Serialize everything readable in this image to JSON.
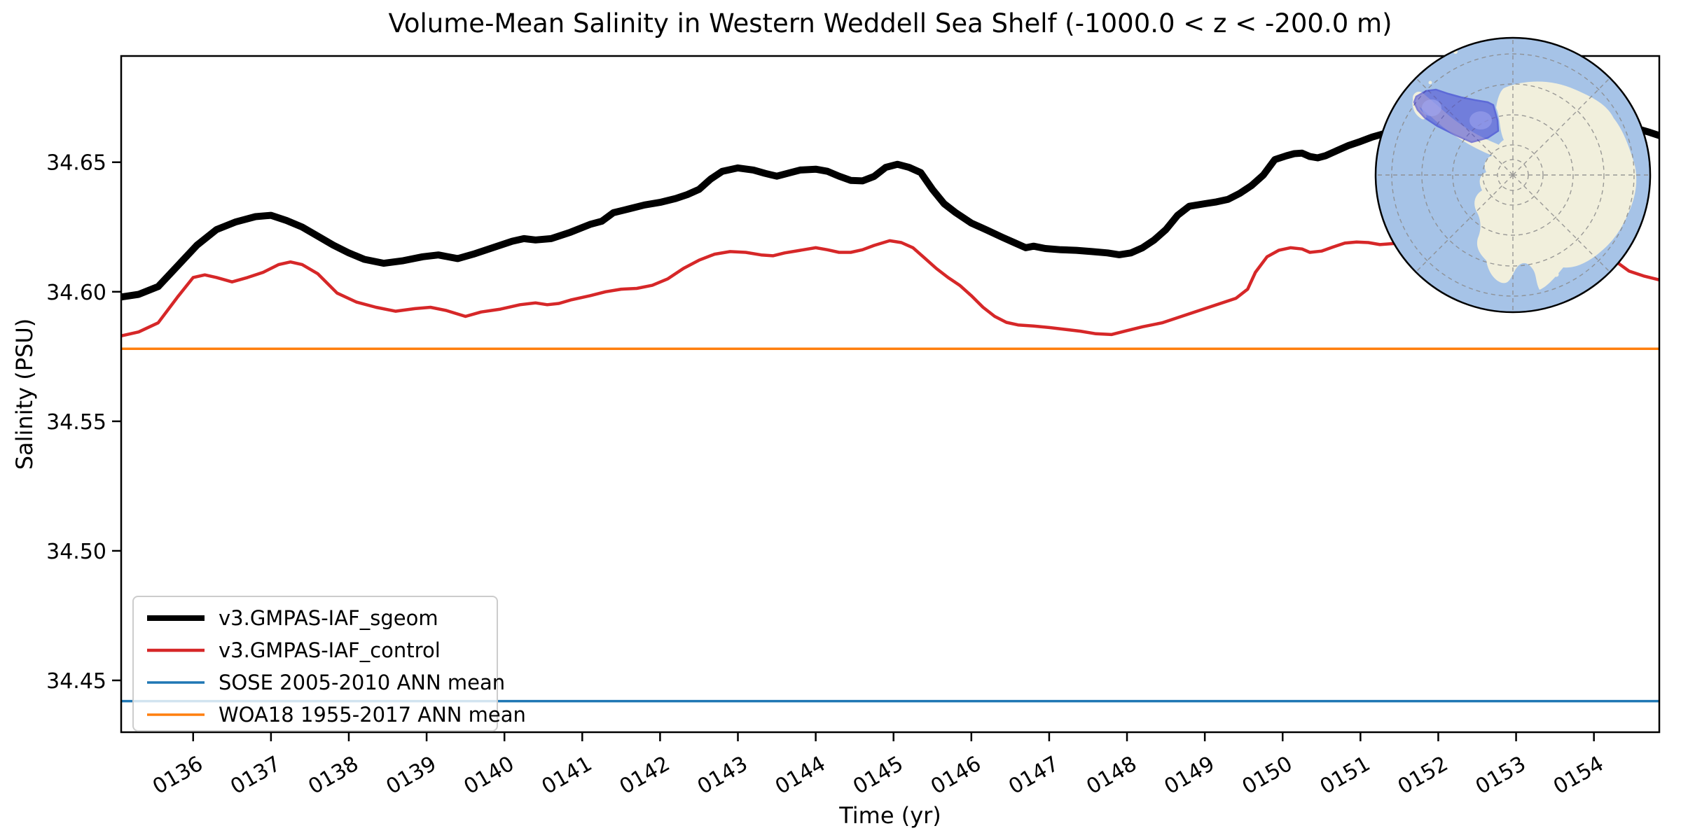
{
  "chart_data": {
    "type": "line",
    "title": "Volume-Mean Salinity in Western Weddell Sea Shelf (-1000.0 < z < -200.0 m)",
    "xlabel": "Time (yr)",
    "ylabel": "Salinity (PSU)",
    "xlim": [
      135.075,
      154.84
    ],
    "ylim": [
      34.43,
      34.691
    ],
    "grid": false,
    "x_ticks": [
      {
        "value": 136,
        "label": "0136"
      },
      {
        "value": 137,
        "label": "0137"
      },
      {
        "value": 138,
        "label": "0138"
      },
      {
        "value": 139,
        "label": "0139"
      },
      {
        "value": 140,
        "label": "0140"
      },
      {
        "value": 141,
        "label": "0141"
      },
      {
        "value": 142,
        "label": "0142"
      },
      {
        "value": 143,
        "label": "0143"
      },
      {
        "value": 144,
        "label": "0144"
      },
      {
        "value": 145,
        "label": "0145"
      },
      {
        "value": 146,
        "label": "0146"
      },
      {
        "value": 147,
        "label": "0147"
      },
      {
        "value": 148,
        "label": "0148"
      },
      {
        "value": 149,
        "label": "0149"
      },
      {
        "value": 150,
        "label": "0150"
      },
      {
        "value": 151,
        "label": "0151"
      },
      {
        "value": 152,
        "label": "0152"
      },
      {
        "value": 153,
        "label": "0153"
      },
      {
        "value": 154,
        "label": "0154"
      }
    ],
    "y_ticks": [
      {
        "value": 34.45,
        "label": "34.45"
      },
      {
        "value": 34.5,
        "label": "34.50"
      },
      {
        "value": 34.55,
        "label": "34.55"
      },
      {
        "value": 34.6,
        "label": "34.60"
      },
      {
        "value": 34.65,
        "label": "34.65"
      }
    ],
    "series": [
      {
        "name": "v3.GMPAS-IAF_sgeom",
        "color": "#000000",
        "line_width": 10,
        "points": [
          [
            135.08,
            34.598
          ],
          [
            135.3,
            34.599
          ],
          [
            135.55,
            34.602
          ],
          [
            135.8,
            34.61
          ],
          [
            136.05,
            34.618
          ],
          [
            136.3,
            34.624
          ],
          [
            136.55,
            34.627
          ],
          [
            136.8,
            34.629
          ],
          [
            137.0,
            34.6295
          ],
          [
            137.2,
            34.6275
          ],
          [
            137.4,
            34.625
          ],
          [
            137.6,
            34.6215
          ],
          [
            137.8,
            34.618
          ],
          [
            138.0,
            34.615
          ],
          [
            138.2,
            34.6125
          ],
          [
            138.45,
            34.611
          ],
          [
            138.7,
            34.612
          ],
          [
            138.95,
            34.6135
          ],
          [
            139.15,
            34.6142
          ],
          [
            139.4,
            34.6128
          ],
          [
            139.6,
            34.6145
          ],
          [
            139.85,
            34.617
          ],
          [
            140.1,
            34.6195
          ],
          [
            140.25,
            34.6205
          ],
          [
            140.4,
            34.62
          ],
          [
            140.6,
            34.6205
          ],
          [
            140.85,
            34.623
          ],
          [
            141.1,
            34.626
          ],
          [
            141.25,
            34.6272
          ],
          [
            141.4,
            34.6305
          ],
          [
            141.6,
            34.632
          ],
          [
            141.8,
            34.6335
          ],
          [
            142.0,
            34.6345
          ],
          [
            142.2,
            34.636
          ],
          [
            142.35,
            34.6375
          ],
          [
            142.5,
            34.6395
          ],
          [
            142.65,
            34.6435
          ],
          [
            142.8,
            34.6465
          ],
          [
            143.0,
            34.6478
          ],
          [
            143.2,
            34.647
          ],
          [
            143.35,
            34.6457
          ],
          [
            143.5,
            34.6446
          ],
          [
            143.65,
            34.6458
          ],
          [
            143.8,
            34.647
          ],
          [
            144.0,
            34.6473
          ],
          [
            144.15,
            34.6465
          ],
          [
            144.3,
            34.6446
          ],
          [
            144.45,
            34.643
          ],
          [
            144.6,
            34.6428
          ],
          [
            144.75,
            34.6445
          ],
          [
            144.9,
            34.648
          ],
          [
            145.05,
            34.6492
          ],
          [
            145.2,
            34.648
          ],
          [
            145.35,
            34.646
          ],
          [
            145.5,
            34.6395
          ],
          [
            145.65,
            34.634
          ],
          [
            145.8,
            34.6305
          ],
          [
            146.0,
            34.6265
          ],
          [
            146.2,
            34.6238
          ],
          [
            146.4,
            34.621
          ],
          [
            146.55,
            34.619
          ],
          [
            146.7,
            34.617
          ],
          [
            146.8,
            34.6176
          ],
          [
            146.95,
            34.6167
          ],
          [
            147.15,
            34.6162
          ],
          [
            147.35,
            34.616
          ],
          [
            147.55,
            34.6155
          ],
          [
            147.75,
            34.615
          ],
          [
            147.9,
            34.6143
          ],
          [
            148.05,
            34.615
          ],
          [
            148.2,
            34.617
          ],
          [
            148.35,
            34.62
          ],
          [
            148.5,
            34.624
          ],
          [
            148.65,
            34.6295
          ],
          [
            148.8,
            34.633
          ],
          [
            149.0,
            34.634
          ],
          [
            149.15,
            34.6347
          ],
          [
            149.3,
            34.6357
          ],
          [
            149.45,
            34.638
          ],
          [
            149.6,
            34.641
          ],
          [
            149.75,
            34.645
          ],
          [
            149.9,
            34.651
          ],
          [
            150.05,
            34.6525
          ],
          [
            150.15,
            34.6533
          ],
          [
            150.25,
            34.6535
          ],
          [
            150.35,
            34.6522
          ],
          [
            150.45,
            34.6517
          ],
          [
            150.55,
            34.6525
          ],
          [
            150.7,
            34.6545
          ],
          [
            150.85,
            34.6565
          ],
          [
            151.0,
            34.658
          ],
          [
            151.15,
            34.6597
          ],
          [
            151.3,
            34.661
          ],
          [
            151.6,
            34.662
          ],
          [
            152.0,
            34.6618
          ],
          [
            152.5,
            34.6628
          ],
          [
            153.0,
            34.6622
          ],
          [
            153.5,
            34.663
          ],
          [
            154.0,
            34.6635
          ],
          [
            154.3,
            34.663
          ],
          [
            154.62,
            34.6624
          ],
          [
            154.72,
            34.6615
          ],
          [
            154.84,
            34.6603
          ]
        ]
      },
      {
        "name": "v3.GMPAS-IAF_control",
        "color": "#d62728",
        "line_width": 4.5,
        "points": [
          [
            135.08,
            34.583
          ],
          [
            135.3,
            34.5845
          ],
          [
            135.55,
            34.588
          ],
          [
            135.8,
            34.598
          ],
          [
            136.0,
            34.6055
          ],
          [
            136.15,
            34.6065
          ],
          [
            136.3,
            34.6055
          ],
          [
            136.5,
            34.6038
          ],
          [
            136.7,
            34.6055
          ],
          [
            136.9,
            34.6075
          ],
          [
            137.1,
            34.6105
          ],
          [
            137.25,
            34.6115
          ],
          [
            137.4,
            34.6105
          ],
          [
            137.6,
            34.607
          ],
          [
            137.85,
            34.5995
          ],
          [
            138.1,
            34.596
          ],
          [
            138.35,
            34.594
          ],
          [
            138.6,
            34.5925
          ],
          [
            138.85,
            34.5935
          ],
          [
            139.05,
            34.594
          ],
          [
            139.25,
            34.5928
          ],
          [
            139.5,
            34.5905
          ],
          [
            139.7,
            34.5922
          ],
          [
            139.95,
            34.5933
          ],
          [
            140.2,
            34.595
          ],
          [
            140.4,
            34.5957
          ],
          [
            140.55,
            34.595
          ],
          [
            140.7,
            34.5955
          ],
          [
            140.85,
            34.5968
          ],
          [
            141.1,
            34.5985
          ],
          [
            141.3,
            34.6
          ],
          [
            141.5,
            34.601
          ],
          [
            141.7,
            34.6013
          ],
          [
            141.9,
            34.6025
          ],
          [
            142.1,
            34.605
          ],
          [
            142.3,
            34.609
          ],
          [
            142.5,
            34.6122
          ],
          [
            142.7,
            34.6145
          ],
          [
            142.9,
            34.6155
          ],
          [
            143.1,
            34.6152
          ],
          [
            143.3,
            34.6142
          ],
          [
            143.45,
            34.6139
          ],
          [
            143.6,
            34.615
          ],
          [
            143.8,
            34.616
          ],
          [
            144.0,
            34.617
          ],
          [
            144.15,
            34.6162
          ],
          [
            144.3,
            34.6152
          ],
          [
            144.45,
            34.6152
          ],
          [
            144.6,
            34.6162
          ],
          [
            144.75,
            34.6179
          ],
          [
            144.95,
            34.6197
          ],
          [
            145.1,
            34.619
          ],
          [
            145.25,
            34.617
          ],
          [
            145.4,
            34.613
          ],
          [
            145.55,
            34.609
          ],
          [
            145.7,
            34.6055
          ],
          [
            145.85,
            34.6025
          ],
          [
            146.0,
            34.5985
          ],
          [
            146.15,
            34.594
          ],
          [
            146.3,
            34.5905
          ],
          [
            146.45,
            34.5882
          ],
          [
            146.6,
            34.5872
          ],
          [
            146.8,
            34.5868
          ],
          [
            147.0,
            34.5862
          ],
          [
            147.2,
            34.5855
          ],
          [
            147.4,
            34.5848
          ],
          [
            147.6,
            34.5838
          ],
          [
            147.8,
            34.5835
          ],
          [
            148.0,
            34.585
          ],
          [
            148.2,
            34.5865
          ],
          [
            148.45,
            34.588
          ],
          [
            148.7,
            34.5905
          ],
          [
            148.95,
            34.593
          ],
          [
            149.2,
            34.5955
          ],
          [
            149.4,
            34.5975
          ],
          [
            149.55,
            34.601
          ],
          [
            149.65,
            34.6075
          ],
          [
            149.8,
            34.6135
          ],
          [
            149.95,
            34.616
          ],
          [
            150.1,
            34.617
          ],
          [
            150.25,
            34.6165
          ],
          [
            150.35,
            34.6152
          ],
          [
            150.5,
            34.6157
          ],
          [
            150.65,
            34.6173
          ],
          [
            150.8,
            34.6188
          ],
          [
            150.95,
            34.6192
          ],
          [
            151.1,
            34.619
          ],
          [
            151.25,
            34.6182
          ],
          [
            151.6,
            34.619
          ],
          [
            152.0,
            34.62
          ],
          [
            152.5,
            34.6195
          ],
          [
            153.0,
            34.6185
          ],
          [
            153.5,
            34.6165
          ],
          [
            154.0,
            34.6145
          ],
          [
            154.25,
            34.6124
          ],
          [
            154.45,
            34.608
          ],
          [
            154.65,
            34.606
          ],
          [
            154.84,
            34.6046
          ]
        ]
      },
      {
        "name": "SOSE 2005-2010 ANN mean",
        "color": "#1f77b4",
        "line_width": 3.5,
        "constant": 34.442
      },
      {
        "name": "WOA18 1955-2017 ANN mean",
        "color": "#ff7f0e",
        "line_width": 3.5,
        "constant": 34.578
      }
    ],
    "legend": {
      "position": "lower left",
      "entries": [
        {
          "label": "v3.GMPAS-IAF_sgeom"
        },
        {
          "label": "v3.GMPAS-IAF_control"
        },
        {
          "label": "SOSE 2005-2010 ANN mean"
        },
        {
          "label": "WOA18 1955-2017 ANN mean"
        }
      ]
    }
  },
  "inset_map": {
    "ocean_color": "#a6c3e7",
    "land_color": "#f1efdc",
    "graticule_color": "#8a8a8a",
    "border_color": "#000000",
    "region_fill": "#4646d2",
    "region_edge": "#2222cc",
    "region_patch": "#a0a6ee"
  }
}
